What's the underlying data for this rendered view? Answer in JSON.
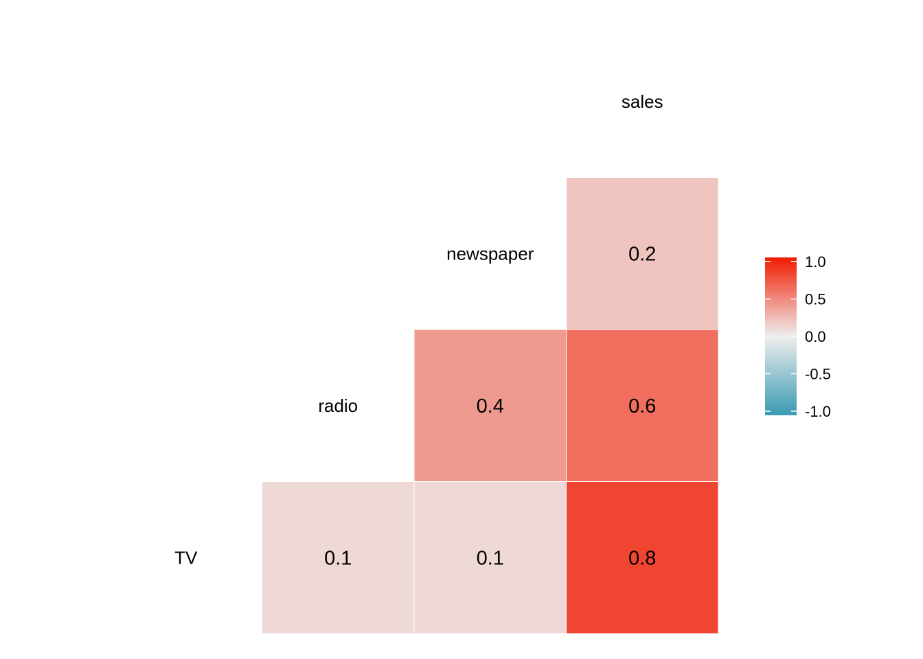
{
  "chart_data": {
    "type": "heatmap",
    "title": "",
    "variables": [
      "TV",
      "radio",
      "newspaper",
      "sales"
    ],
    "cells": [
      {
        "row": "TV",
        "col": "radio",
        "value": 0.1,
        "label": "0.1"
      },
      {
        "row": "TV",
        "col": "newspaper",
        "value": 0.1,
        "label": "0.1"
      },
      {
        "row": "TV",
        "col": "sales",
        "value": 0.8,
        "label": "0.8"
      },
      {
        "row": "radio",
        "col": "newspaper",
        "value": 0.4,
        "label": "0.4"
      },
      {
        "row": "radio",
        "col": "sales",
        "value": 0.6,
        "label": "0.6"
      },
      {
        "row": "newspaper",
        "col": "sales",
        "value": 0.2,
        "label": "0.2"
      }
    ],
    "color_scale": {
      "range": [
        -1.0,
        1.0
      ],
      "low_color": "#3A9AB2",
      "mid_color": "#EEEEEE",
      "high_color": "#F11B00"
    },
    "legend": {
      "placement": "right",
      "ticks": [
        {
          "value": 1.0,
          "label": "1.0"
        },
        {
          "value": 0.5,
          "label": "0.5"
        },
        {
          "value": 0.0,
          "label": "0.0"
        },
        {
          "value": -0.5,
          "label": "-0.5"
        },
        {
          "value": -1.0,
          "label": "-1.0"
        }
      ]
    },
    "grid": false
  }
}
